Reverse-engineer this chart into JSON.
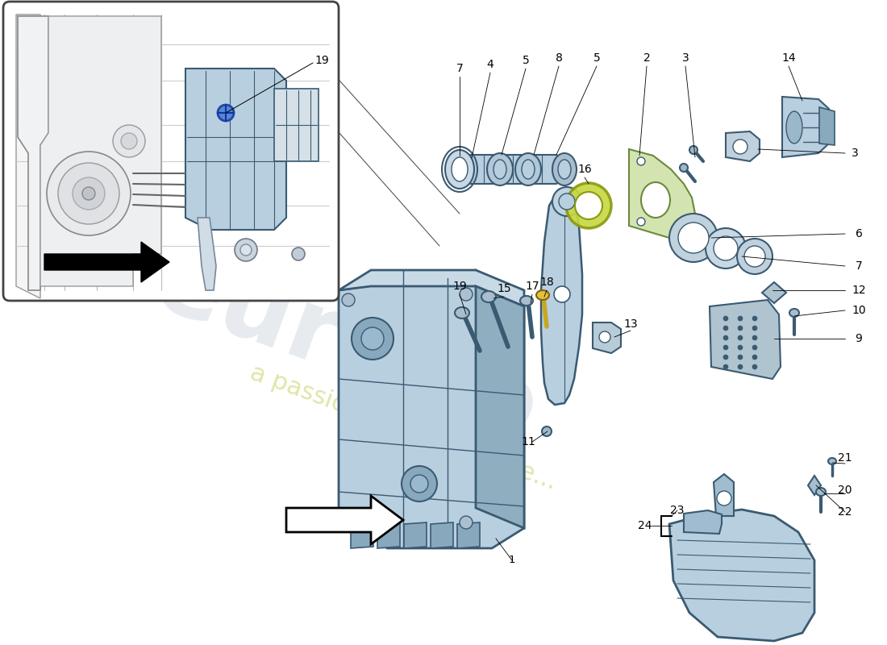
{
  "bg": "#ffffff",
  "lb": "#b8cfe0",
  "lb2": "#a0bdd0",
  "lb3": "#88aabf",
  "dk": "#3a5a72",
  "lk": "#6a8fa5",
  "yg": "#c8d840",
  "gray_line": "#888888",
  "wm_color": "#d0d8e0",
  "wm_color2": "#c8d060",
  "fig_w": 11.0,
  "fig_h": 8.0,
  "dpi": 100
}
